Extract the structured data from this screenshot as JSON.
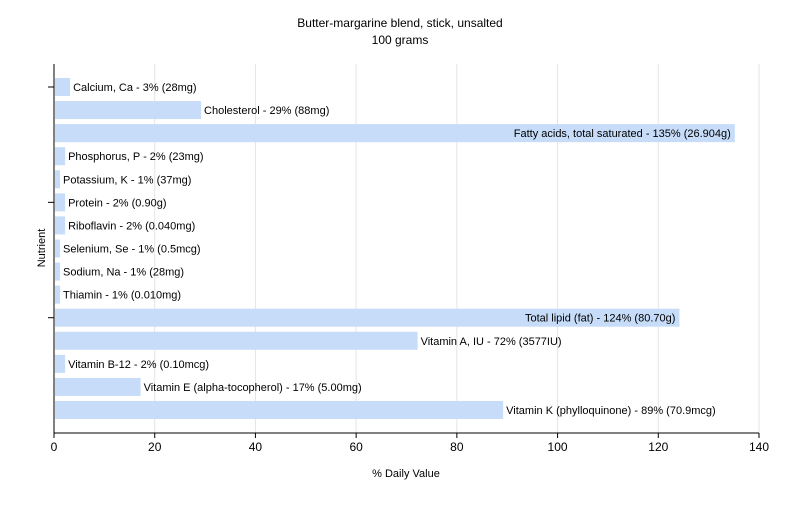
{
  "chart_data": {
    "type": "bar",
    "orientation": "horizontal",
    "title": "Butter-margarine blend, stick, unsalted",
    "subtitle": "100 grams",
    "xlabel": "% Daily Value",
    "ylabel": "Nutrient",
    "xlim": [
      0,
      140
    ],
    "xticks": [
      0,
      20,
      40,
      60,
      80,
      100,
      120,
      140
    ],
    "grid": true,
    "bar_color": "#c6dcf8",
    "categories": [
      "Calcium, Ca",
      "Cholesterol",
      "Fatty acids, total saturated",
      "Phosphorus, P",
      "Potassium, K",
      "Protein",
      "Riboflavin",
      "Selenium, Se",
      "Sodium, Na",
      "Thiamin",
      "Total lipid (fat)",
      "Vitamin A, IU",
      "Vitamin B-12",
      "Vitamin E (alpha-tocopherol)",
      "Vitamin K (phylloquinone)"
    ],
    "values": [
      3,
      29,
      135,
      2,
      1,
      2,
      2,
      1,
      1,
      1,
      124,
      72,
      2,
      17,
      89
    ],
    "labels": [
      "Calcium, Ca - 3% (28mg)",
      "Cholesterol - 29% (88mg)",
      "Fatty acids, total saturated - 135% (26.904g)",
      "Phosphorus, P - 2% (23mg)",
      "Potassium, K - 1% (37mg)",
      "Protein - 2% (0.90g)",
      "Riboflavin - 2% (0.040mg)",
      "Selenium, Se - 1% (0.5mcg)",
      "Sodium, Na - 1% (28mg)",
      "Thiamin - 1% (0.010mg)",
      "Total lipid (fat) - 124% (80.70g)",
      "Vitamin A, IU - 72% (3577IU)",
      "Vitamin B-12 - 2% (0.10mcg)",
      "Vitamin E (alpha-tocopherol) - 17% (5.00mg)",
      "Vitamin K (phylloquinone) - 89% (70.9mcg)"
    ]
  }
}
